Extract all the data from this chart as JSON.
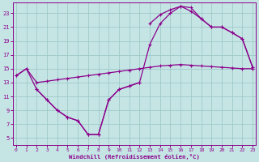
{
  "xlabel": "Windchill (Refroidissement éolien,°C)",
  "xlim": [
    -0.3,
    23.3
  ],
  "ylim": [
    4.0,
    24.5
  ],
  "xticks": [
    0,
    1,
    2,
    3,
    4,
    5,
    6,
    7,
    8,
    9,
    10,
    11,
    12,
    13,
    14,
    15,
    16,
    17,
    18,
    19,
    20,
    21,
    22,
    23
  ],
  "yticks": [
    5,
    7,
    9,
    11,
    13,
    15,
    17,
    19,
    21,
    23
  ],
  "bg_color": "#c5e5e5",
  "grid_color": "#a0c8c8",
  "line_color": "#8b008b",
  "curve1_x": [
    0,
    1,
    2,
    3,
    4,
    5,
    6,
    7,
    8,
    9,
    10,
    11,
    12,
    13,
    14,
    15,
    16,
    17,
    18,
    19,
    20,
    21,
    22,
    23
  ],
  "curve1_y": [
    14.0,
    15.0,
    13.0,
    13.2,
    13.4,
    13.6,
    13.8,
    14.0,
    14.2,
    14.4,
    14.6,
    14.8,
    15.0,
    15.2,
    15.4,
    15.5,
    15.6,
    15.5,
    15.4,
    15.3,
    15.2,
    15.1,
    15.0,
    15.0
  ],
  "curve2_x": [
    2,
    3,
    4,
    5,
    6,
    7,
    8,
    9,
    10,
    11,
    12
  ],
  "curve2_y": [
    12.0,
    10.5,
    9.0,
    8.0,
    7.5,
    5.5,
    5.5,
    10.5,
    12.0,
    12.5,
    13.0
  ],
  "curve3_x": [
    0,
    1,
    2,
    3,
    4,
    5,
    6,
    7,
    8,
    9,
    10,
    11,
    12,
    13,
    14,
    15,
    16,
    17,
    18,
    19,
    20,
    21,
    22,
    23
  ],
  "curve3_y": [
    14.0,
    15.0,
    12.0,
    10.5,
    9.0,
    8.0,
    7.5,
    5.5,
    5.5,
    10.5,
    12.0,
    12.5,
    13.0,
    18.5,
    21.5,
    23.0,
    24.0,
    23.8,
    22.2,
    21.0,
    21.0,
    20.2,
    19.3,
    15.2
  ],
  "curve4_x": [
    13,
    14,
    15,
    16,
    17,
    18,
    19,
    20,
    21,
    22,
    23
  ],
  "curve4_y": [
    21.5,
    22.8,
    23.5,
    24.0,
    23.3,
    22.2,
    21.0,
    21.0,
    20.2,
    19.3,
    15.2
  ]
}
